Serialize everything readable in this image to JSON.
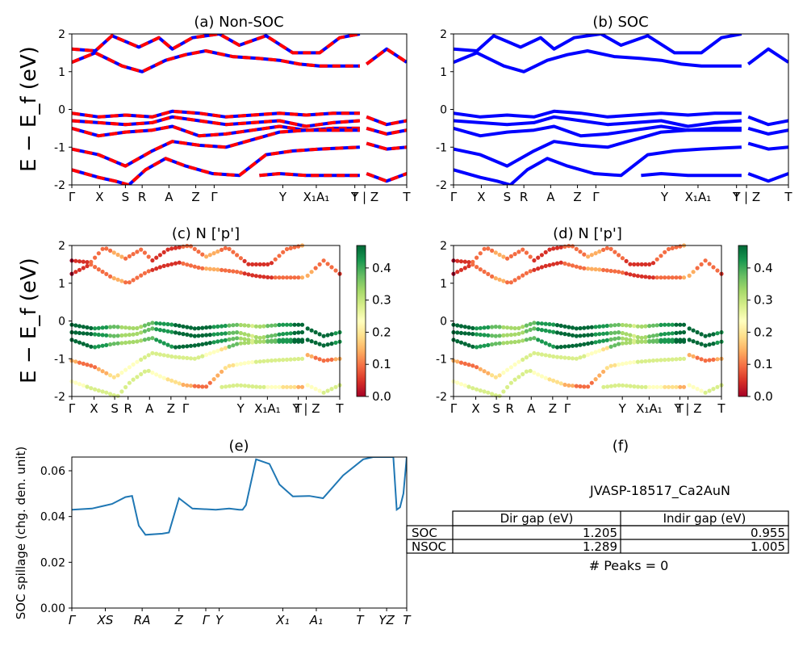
{
  "figure": {
    "shared_ylabel": "E − E_f (eV)",
    "kpath_labels": [
      "Γ",
      "X",
      "S",
      "R",
      "A",
      "Z",
      "Γ",
      "Y",
      "X₁",
      "A₁",
      "T",
      "Y | Z",
      "T"
    ]
  },
  "chart_data": [
    {
      "panel": "a",
      "type": "line",
      "title": "(a) Non-SOC",
      "ylabel": "E − E_f (eV)",
      "ylim": [
        -2,
        2
      ],
      "yticks": [
        -2,
        -1,
        0,
        1,
        2
      ],
      "xticks": [
        "Γ",
        "X",
        "S",
        "R",
        "A",
        "Z",
        "Γ",
        "Y",
        "X₁A₁",
        "T",
        "Y | Z",
        "T"
      ],
      "style": "red dashed bands over blue bands",
      "colors": {
        "bands": "#ff0000",
        "underlay": "#0000ff"
      },
      "series": [
        {
          "x": [
            0,
            0.07,
            0.15,
            0.21,
            0.28,
            0.34,
            0.4,
            0.48,
            0.56,
            0.62,
            0.68,
            0.74,
            0.82,
            0.86
          ],
          "y": [
            1.25,
            1.5,
            1.15,
            1.0,
            1.3,
            1.45,
            1.55,
            1.4,
            1.35,
            1.3,
            1.2,
            1.15,
            1.15,
            1.15
          ]
        },
        {
          "x": [
            0,
            0.07,
            0.12,
            0.2,
            0.26,
            0.3,
            0.36,
            0.44,
            0.5,
            0.58,
            0.66,
            0.74,
            0.8,
            0.86
          ],
          "y": [
            1.6,
            1.55,
            1.95,
            1.65,
            1.9,
            1.6,
            1.9,
            2.0,
            1.7,
            1.95,
            1.5,
            1.5,
            1.9,
            2.0
          ]
        },
        {
          "x": [
            0.88,
            0.94,
            1.0
          ],
          "y": [
            1.2,
            1.6,
            1.25
          ]
        },
        {
          "x": [
            0,
            0.08,
            0.16,
            0.24,
            0.3,
            0.38,
            0.46,
            0.54,
            0.62,
            0.7,
            0.78,
            0.86
          ],
          "y": [
            -0.1,
            -0.2,
            -0.15,
            -0.2,
            -0.05,
            -0.1,
            -0.2,
            -0.15,
            -0.1,
            -0.15,
            -0.1,
            -0.1
          ]
        },
        {
          "x": [
            0,
            0.08,
            0.16,
            0.24,
            0.3,
            0.38,
            0.46,
            0.54,
            0.62,
            0.7,
            0.78,
            0.86
          ],
          "y": [
            -0.3,
            -0.35,
            -0.4,
            -0.35,
            -0.2,
            -0.3,
            -0.4,
            -0.35,
            -0.3,
            -0.45,
            -0.35,
            -0.3
          ]
        },
        {
          "x": [
            0,
            0.08,
            0.16,
            0.24,
            0.3,
            0.38,
            0.46,
            0.54,
            0.62,
            0.7,
            0.78,
            0.86
          ],
          "y": [
            -0.5,
            -0.7,
            -0.6,
            -0.55,
            -0.45,
            -0.7,
            -0.65,
            -0.55,
            -0.45,
            -0.55,
            -0.5,
            -0.5
          ]
        },
        {
          "x": [
            0,
            0.08,
            0.16,
            0.24,
            0.3,
            0.38,
            0.46,
            0.54,
            0.62,
            0.7,
            0.78,
            0.86
          ],
          "y": [
            -1.05,
            -1.2,
            -1.5,
            -1.1,
            -0.85,
            -0.95,
            -1.0,
            -0.8,
            -0.6,
            -0.55,
            -0.55,
            -0.55
          ]
        },
        {
          "x": [
            0,
            0.08,
            0.13,
            0.17,
            0.22,
            0.28,
            0.34,
            0.42,
            0.5,
            0.58,
            0.66,
            0.74,
            0.86
          ],
          "y": [
            -1.6,
            -1.8,
            -1.9,
            -2.0,
            -1.6,
            -1.3,
            -1.5,
            -1.7,
            -1.75,
            -1.2,
            -1.1,
            -1.05,
            -1.0
          ]
        },
        {
          "x": [
            0.56,
            0.62,
            0.7,
            0.78,
            0.86
          ],
          "y": [
            -1.75,
            -1.7,
            -1.75,
            -1.75,
            -1.75
          ]
        },
        {
          "x": [
            0.88,
            0.94,
            1.0
          ],
          "y": [
            -0.2,
            -0.4,
            -0.3
          ]
        },
        {
          "x": [
            0.88,
            0.94,
            1.0
          ],
          "y": [
            -0.5,
            -0.65,
            -0.55
          ]
        },
        {
          "x": [
            0.88,
            0.94,
            1.0
          ],
          "y": [
            -0.9,
            -1.05,
            -1.0
          ]
        },
        {
          "x": [
            0.88,
            0.94,
            1.0
          ],
          "y": [
            -1.7,
            -1.9,
            -1.7
          ]
        }
      ]
    },
    {
      "panel": "b",
      "type": "line",
      "title": "(b) SOC",
      "ylim": [
        -2,
        2
      ],
      "yticks": [
        -2,
        -1,
        0,
        1,
        2
      ],
      "xticks": [
        "Γ",
        "X",
        "S",
        "R",
        "A",
        "Z",
        "Γ",
        "Y",
        "X₁A₁",
        "T",
        "Y | Z",
        "T"
      ],
      "colors": {
        "bands": "#0000ff"
      },
      "series": "same band structure as panel (a), drawn solid blue"
    },
    {
      "panel": "c",
      "type": "scatter",
      "title": "(c)  N ['p']",
      "ylabel": "E − E_f (eV)",
      "ylim": [
        -2,
        2
      ],
      "yticks": [
        -2,
        -1,
        0,
        1,
        2
      ],
      "xticks": [
        "Γ",
        "X",
        "S",
        "R",
        "A",
        "Z",
        "Γ",
        "Y",
        "X₁A₁",
        "T",
        "Y | Z",
        "T"
      ],
      "colorbar": {
        "min": 0.0,
        "max": 0.47,
        "ticks": [
          0.0,
          0.1,
          0.2,
          0.3,
          0.4
        ],
        "colormap": "RdYlGn"
      },
      "series": "bands of panel (a) as dots colored by N p-orbital weight; conduction bands ≈0.0–0.1, valence bands near 0 eV ≈0.3–0.47"
    },
    {
      "panel": "d",
      "type": "scatter",
      "title": "(d) N ['p']",
      "ylim": [
        -2,
        2
      ],
      "yticks": [
        -2,
        -1,
        0,
        1,
        2
      ],
      "xticks": [
        "Γ",
        "X",
        "S",
        "R",
        "A",
        "Z",
        "Γ",
        "Y",
        "X₁A₁",
        "T",
        "Y | Z",
        "T"
      ],
      "colorbar": {
        "min": 0.0,
        "max": 0.47,
        "ticks": [
          0.0,
          0.1,
          0.2,
          0.3,
          0.4
        ],
        "colormap": "RdYlGn"
      },
      "series": "SOC bands of panel (b) as dots colored by N p-orbital weight"
    },
    {
      "panel": "e",
      "type": "line",
      "title": "(e)",
      "ylabel": "SOC spillage (chg. den. unit)",
      "ylim": [
        0.0,
        0.066
      ],
      "yticks": [
        0.0,
        0.02,
        0.04,
        0.06
      ],
      "xticks": [
        "Γ",
        "XS",
        "RA",
        "Z",
        "Γ",
        "Y",
        "X₁",
        "A₁",
        "T",
        "YZ",
        "T"
      ],
      "colors": {
        "line": "#1f77b4"
      },
      "x": [
        0,
        0.06,
        0.12,
        0.16,
        0.18,
        0.2,
        0.22,
        0.27,
        0.29,
        0.3,
        0.32,
        0.36,
        0.43,
        0.47,
        0.5,
        0.51,
        0.52,
        0.55,
        0.59,
        0.62,
        0.66,
        0.71,
        0.75,
        0.81,
        0.87,
        0.9,
        0.93,
        0.96,
        0.97,
        0.98,
        0.99,
        1.0
      ],
      "y": [
        0.043,
        0.0435,
        0.0455,
        0.0485,
        0.049,
        0.036,
        0.032,
        0.0325,
        0.033,
        0.038,
        0.048,
        0.0435,
        0.043,
        0.0435,
        0.043,
        0.043,
        0.045,
        0.065,
        0.063,
        0.054,
        0.0488,
        0.049,
        0.048,
        0.058,
        0.065,
        0.066,
        0.066,
        0.066,
        0.043,
        0.044,
        0.05,
        0.066
      ]
    }
  ],
  "table": {
    "title": "(f)",
    "subtitle": "JVASP-18517_Ca2AuN",
    "columns": [
      "",
      "Dir gap (eV)",
      "Indir gap (eV)"
    ],
    "rows": [
      {
        "label": "SOC",
        "dir": "1.205",
        "indir": "0.955"
      },
      {
        "label": "NSOC",
        "dir": "1.289",
        "indir": "1.005"
      }
    ],
    "footer": "# Peaks = 0"
  }
}
